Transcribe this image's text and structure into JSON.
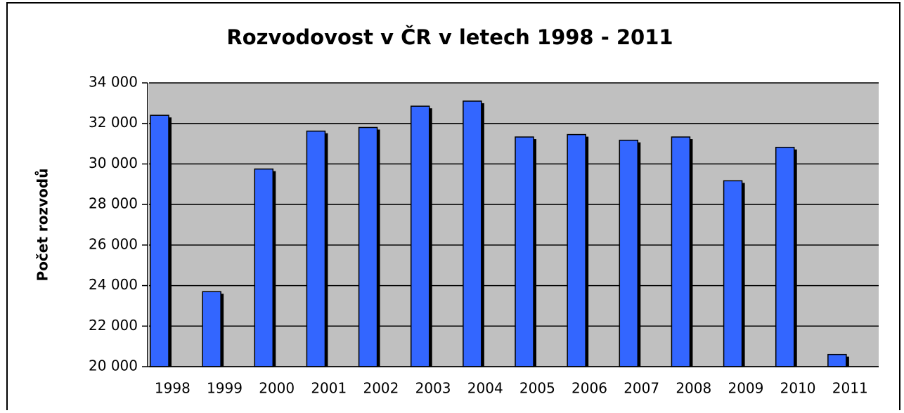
{
  "chart_data": {
    "type": "bar",
    "title": "Rozvodovost v ČR v letech 1998 - 2011",
    "y_label": "Počet rozvodů",
    "categories": [
      "1998",
      "1999",
      "2000",
      "2001",
      "2002",
      "2003",
      "2004",
      "2005",
      "2006",
      "2007",
      "2008",
      "2009",
      "2010",
      "2011"
    ],
    "values": [
      32400,
      23700,
      29750,
      31620,
      31800,
      32850,
      33100,
      31330,
      31450,
      31170,
      31330,
      29170,
      30820,
      20600
    ],
    "color": "#3366ff",
    "ylim": [
      20000,
      34000
    ],
    "yticks": [
      {
        "value": 20000,
        "label": "20 000"
      },
      {
        "value": 22000,
        "label": "22 000"
      },
      {
        "value": 24000,
        "label": "24 000"
      },
      {
        "value": 26000,
        "label": "26 000"
      },
      {
        "value": 28000,
        "label": "28 000"
      },
      {
        "value": 30000,
        "label": "30 000"
      },
      {
        "value": 32000,
        "label": "32 000"
      },
      {
        "value": 34000,
        "label": "34 000"
      }
    ],
    "grid": true
  }
}
